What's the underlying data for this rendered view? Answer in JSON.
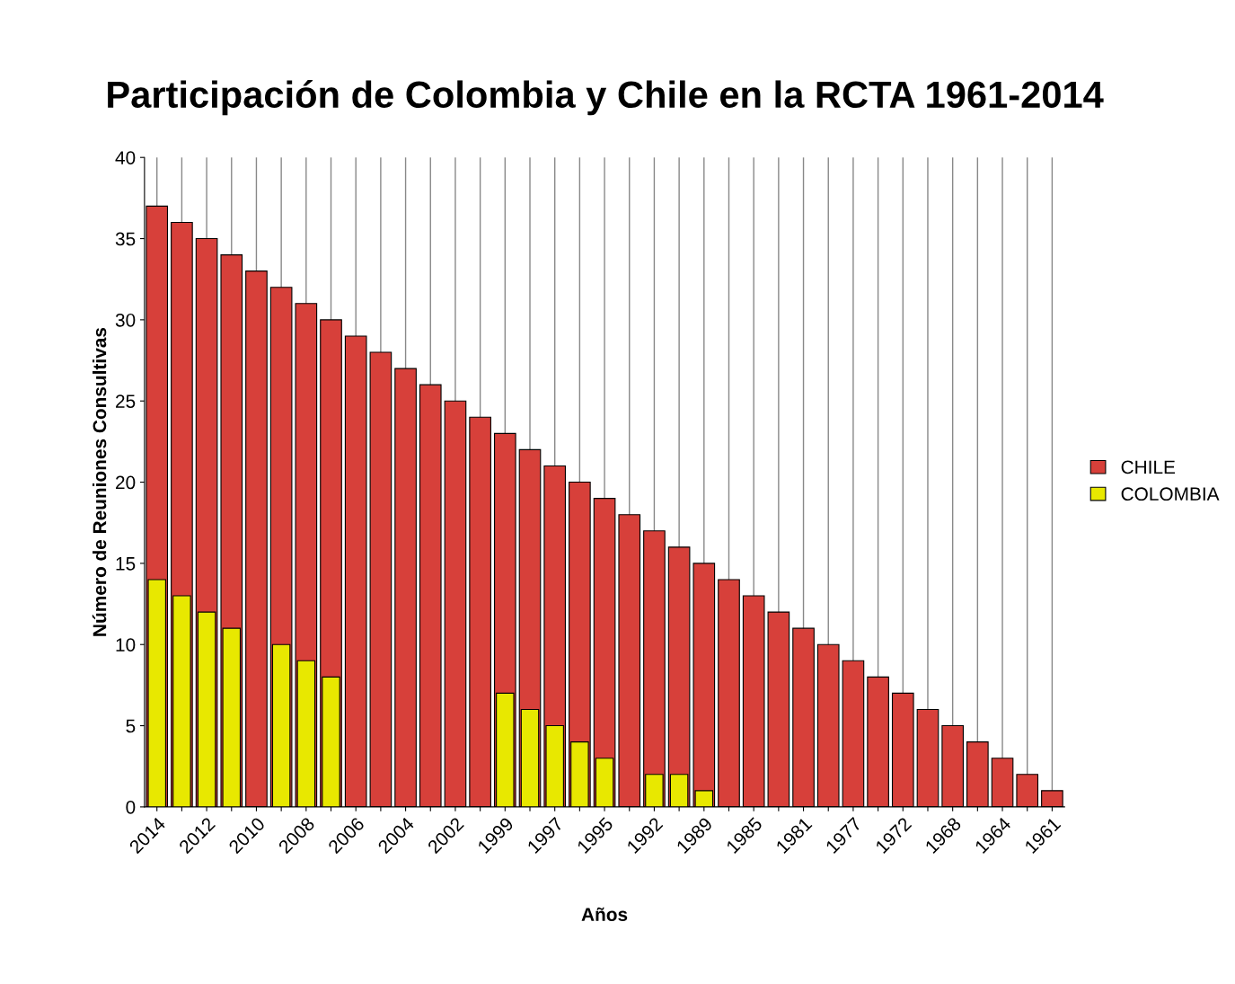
{
  "chart_data": {
    "type": "bar",
    "title": "Participación de Colombia y Chile en la RCTA 1961-2014",
    "xlabel": "Años",
    "ylabel": "Número de Reuniones Consultivas",
    "categories": [
      "2014",
      null,
      "2012",
      null,
      "2010",
      null,
      "2008",
      null,
      "2006",
      null,
      "2004",
      null,
      "2002",
      null,
      "1999",
      null,
      "1997",
      null,
      "1995",
      null,
      "1992",
      null,
      "1989",
      null,
      "1985",
      null,
      "1981",
      null,
      "1977",
      null,
      "1972",
      null,
      "1968",
      null,
      "1964",
      null,
      "1961"
    ],
    "series": [
      {
        "name": "CHILE",
        "color": "#d7403a",
        "values": [
          37,
          36,
          35,
          34,
          33,
          32,
          31,
          30,
          29,
          28,
          27,
          26,
          25,
          24,
          23,
          22,
          21,
          20,
          19,
          18,
          17,
          16,
          15,
          14,
          13,
          12,
          11,
          10,
          9,
          8,
          7,
          6,
          5,
          4,
          3,
          2,
          1
        ]
      },
      {
        "name": "COLOMBIA",
        "color": "#e8e800",
        "values": [
          14,
          13,
          12,
          11,
          null,
          10,
          9,
          8,
          null,
          null,
          null,
          null,
          null,
          null,
          7,
          6,
          5,
          4,
          3,
          null,
          2,
          2,
          1,
          null,
          null,
          null,
          null,
          null,
          null,
          null,
          null,
          null,
          null,
          null,
          null,
          null,
          null
        ]
      }
    ],
    "ylim": [
      0,
      40
    ],
    "yticks": [
      0,
      5,
      10,
      15,
      20,
      25,
      30,
      35,
      40
    ],
    "grid": "x",
    "legend": "right"
  }
}
